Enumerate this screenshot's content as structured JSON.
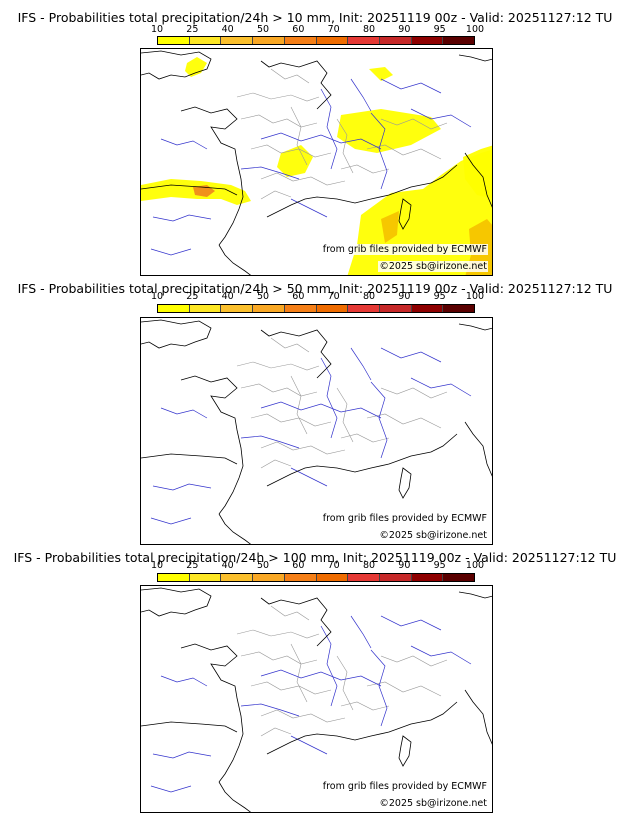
{
  "colorbar": {
    "ticks": [
      "10",
      "25",
      "40",
      "50",
      "60",
      "70",
      "80",
      "90",
      "95",
      "100"
    ],
    "colors": [
      "#ffff00",
      "#fde725",
      "#fbc02d",
      "#f9a825",
      "#f57f17",
      "#ef6c00",
      "#e53935",
      "#c62828",
      "#8e0000",
      "#5a0000"
    ]
  },
  "panels": [
    {
      "title": "IFS - Probabilities total precipitation/24h > 10 mm, Init: 20251119 00z - Valid: 20251127:12 TU",
      "credit_source": "from grib files provided by ECMWF",
      "credit_copyright": "©2025 sb@irizone.net",
      "has_precip": true
    },
    {
      "title": "IFS - Probabilities total precipitation/24h > 50 mm, Init: 20251119 00z - Valid: 20251127:12 TU",
      "credit_source": "from grib files provided by ECMWF",
      "credit_copyright": "©2025 sb@irizone.net",
      "has_precip": false
    },
    {
      "title": "IFS - Probabilities total precipitation/24h > 100 mm, Init: 20251119 00z - Valid: 20251127:12 TU",
      "credit_source": "from grib files provided by ECMWF",
      "credit_copyright": "©2025 sb@irizone.net",
      "has_precip": false
    }
  ],
  "map_colors": {
    "coast": "#000000",
    "rivers": "#3333cc",
    "borders": "#999999",
    "precip_light": "#ffff00",
    "precip_mid": "#f5c400",
    "precip_high": "#f08a1c"
  }
}
